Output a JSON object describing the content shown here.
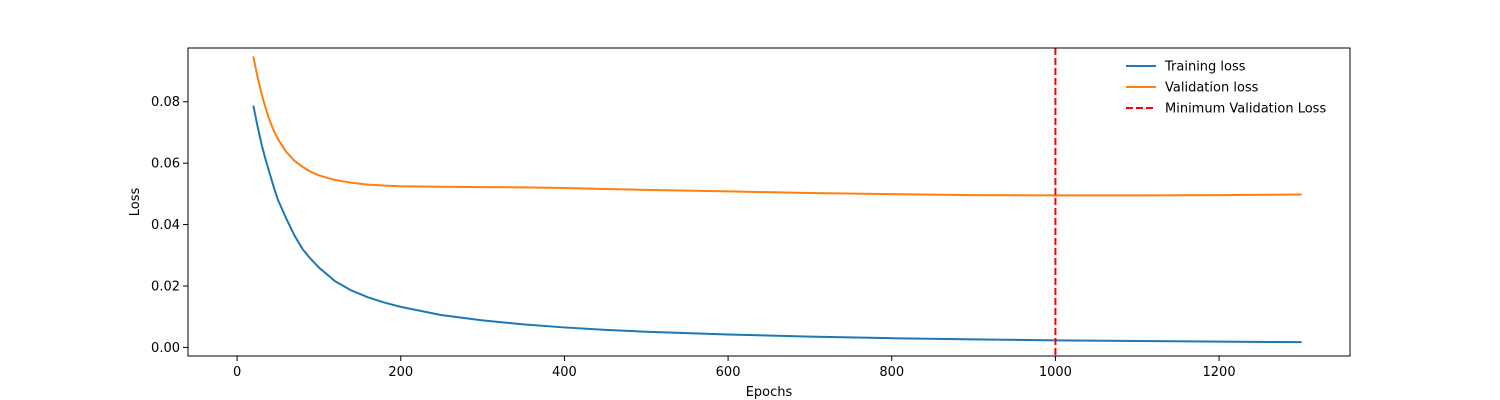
{
  "chart_data": {
    "type": "line",
    "title": "",
    "xlabel": "Epochs",
    "ylabel": "Loss",
    "xlim": [
      -60,
      1360
    ],
    "ylim": [
      -0.0028,
      0.0975
    ],
    "x_ticks": [
      0,
      200,
      400,
      600,
      800,
      1000,
      1200
    ],
    "x_tick_labels": [
      "0",
      "200",
      "400",
      "600",
      "800",
      "1000",
      "1200"
    ],
    "y_ticks": [
      0.0,
      0.02,
      0.04,
      0.06,
      0.08
    ],
    "y_tick_labels": [
      "0.00",
      "0.02",
      "0.04",
      "0.06",
      "0.08"
    ],
    "grid": false,
    "legend_position": "top-right",
    "series": [
      {
        "name": "Training loss",
        "color": "#1f77b4",
        "style": "solid",
        "x": [
          20,
          25,
          30,
          35,
          40,
          45,
          50,
          60,
          70,
          80,
          90,
          100,
          120,
          140,
          160,
          180,
          200,
          250,
          300,
          350,
          400,
          450,
          500,
          600,
          700,
          800,
          900,
          1000,
          1100,
          1200,
          1300
        ],
        "y": [
          0.0785,
          0.072,
          0.066,
          0.061,
          0.0565,
          0.052,
          0.048,
          0.042,
          0.0365,
          0.032,
          0.0288,
          0.026,
          0.0215,
          0.0185,
          0.0163,
          0.0146,
          0.0132,
          0.0105,
          0.0088,
          0.0075,
          0.0065,
          0.0057,
          0.0051,
          0.0042,
          0.0035,
          0.003,
          0.0026,
          0.0023,
          0.0021,
          0.0019,
          0.0017
        ]
      },
      {
        "name": "Validation loss",
        "color": "#ff7f0e",
        "style": "solid",
        "x": [
          20,
          25,
          30,
          35,
          40,
          45,
          50,
          60,
          70,
          80,
          90,
          100,
          120,
          140,
          160,
          180,
          200,
          250,
          300,
          350,
          400,
          450,
          500,
          600,
          700,
          800,
          900,
          1000,
          1100,
          1200,
          1300
        ],
        "y": [
          0.0945,
          0.088,
          0.0825,
          0.0778,
          0.0738,
          0.0705,
          0.0678,
          0.0637,
          0.0608,
          0.0588,
          0.0572,
          0.056,
          0.0545,
          0.0536,
          0.053,
          0.0527,
          0.0525,
          0.0523,
          0.0522,
          0.0521,
          0.0519,
          0.0516,
          0.0513,
          0.0508,
          0.0503,
          0.0499,
          0.0496,
          0.0495,
          0.0495,
          0.0496,
          0.0498
        ]
      }
    ],
    "vline": {
      "name": "Minimum Validation Loss",
      "x": 1000,
      "color": "#ff0000",
      "style": "dashed"
    }
  }
}
